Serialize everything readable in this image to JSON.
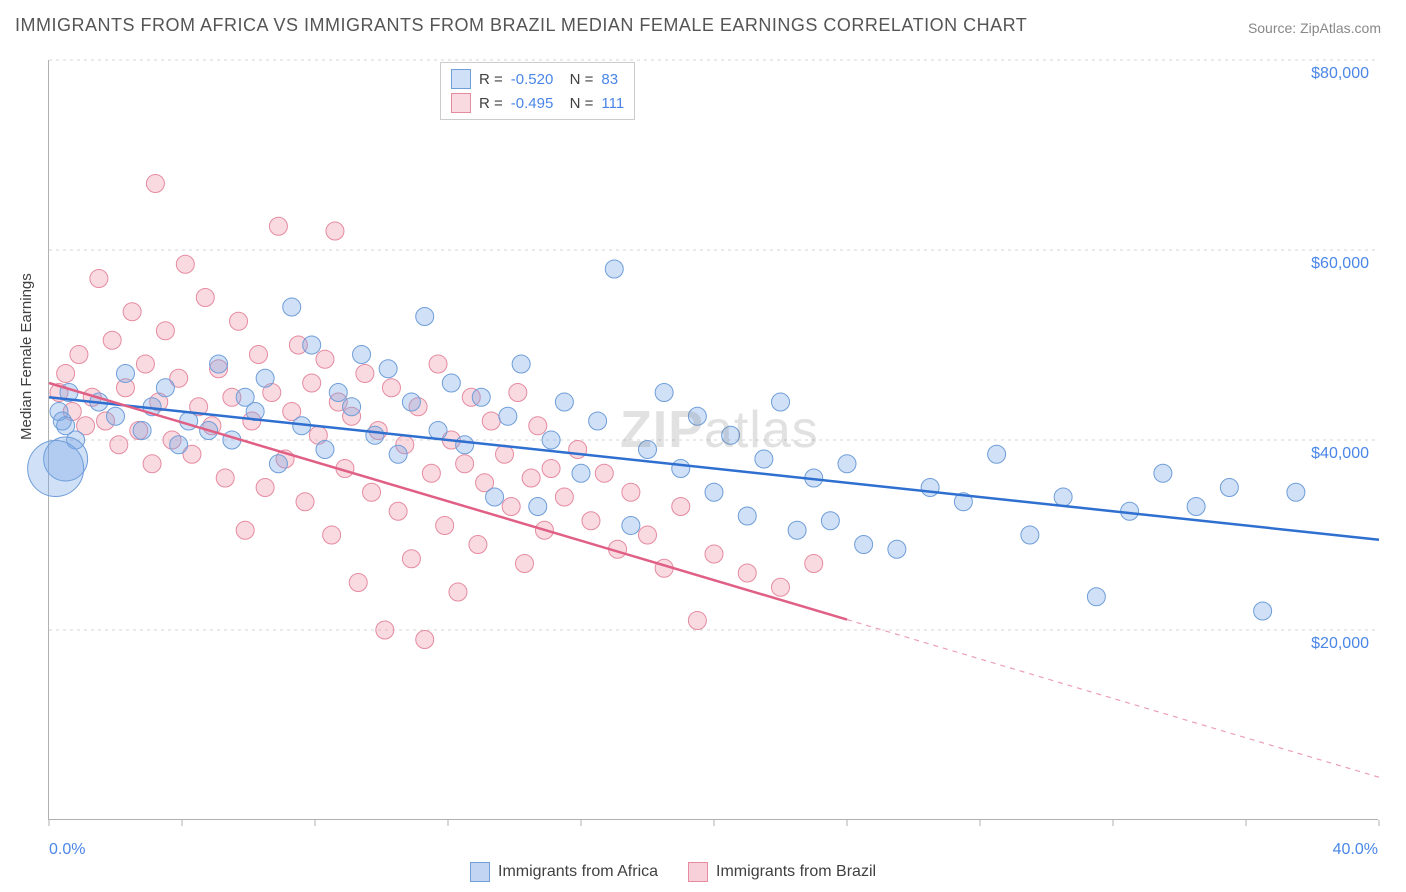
{
  "title": "IMMIGRANTS FROM AFRICA VS IMMIGRANTS FROM BRAZIL MEDIAN FEMALE EARNINGS CORRELATION CHART",
  "source": "Source: ZipAtlas.com",
  "ylabel": "Median Female Earnings",
  "watermark_zip": "ZIP",
  "watermark_atlas": "atlas",
  "chart": {
    "type": "scatter-with-regression",
    "xlim": [
      0,
      40
    ],
    "ylim": [
      0,
      80000
    ],
    "x_tick_label_min": "0.0%",
    "x_tick_label_max": "40.0%",
    "x_ticks": [
      0,
      4,
      8,
      12,
      16,
      20,
      24,
      28,
      32,
      36,
      40
    ],
    "y_ticks": [
      20000,
      40000,
      60000,
      80000
    ],
    "y_tick_labels": [
      "$20,000",
      "$40,000",
      "$60,000",
      "$80,000"
    ],
    "grid_color": "#d5d5d5",
    "axis_color": "#b0b0b0",
    "tick_label_color": "#4a86e8",
    "background_color": "#ffffff",
    "marker_radius": 9,
    "marker_opacity": 0.35,
    "line_width": 2.5,
    "series": [
      {
        "name": "Immigrants from Africa",
        "color_fill": "rgba(120,165,230,0.35)",
        "color_stroke": "#6f9ed9",
        "line_color": "#2e6fd0",
        "R": "-0.520",
        "N": "83",
        "regression": {
          "y_at_x0": 44500,
          "y_at_x40": 29500,
          "dashed_from_x": null
        },
        "points": [
          [
            0.3,
            43000
          ],
          [
            0.4,
            42000
          ],
          [
            0.5,
            41500
          ],
          [
            0.6,
            45000
          ],
          [
            0.8,
            40000
          ],
          [
            0.5,
            38000,
            22
          ],
          [
            0.2,
            37000,
            28
          ],
          [
            1.5,
            44000
          ],
          [
            2.0,
            42500
          ],
          [
            2.3,
            47000
          ],
          [
            2.8,
            41000
          ],
          [
            3.1,
            43500
          ],
          [
            3.5,
            45500
          ],
          [
            3.9,
            39500
          ],
          [
            4.2,
            42000
          ],
          [
            4.8,
            41000
          ],
          [
            5.1,
            48000
          ],
          [
            5.5,
            40000
          ],
          [
            5.9,
            44500
          ],
          [
            6.2,
            43000
          ],
          [
            6.5,
            46500
          ],
          [
            6.9,
            37500
          ],
          [
            7.3,
            54000
          ],
          [
            7.6,
            41500
          ],
          [
            7.9,
            50000
          ],
          [
            8.3,
            39000
          ],
          [
            8.7,
            45000
          ],
          [
            9.1,
            43500
          ],
          [
            9.4,
            49000
          ],
          [
            9.8,
            40500
          ],
          [
            10.2,
            47500
          ],
          [
            10.5,
            38500
          ],
          [
            10.9,
            44000
          ],
          [
            11.3,
            53000
          ],
          [
            11.7,
            41000
          ],
          [
            12.1,
            46000
          ],
          [
            12.5,
            39500
          ],
          [
            13.0,
            44500
          ],
          [
            13.4,
            34000
          ],
          [
            13.8,
            42500
          ],
          [
            14.2,
            48000
          ],
          [
            14.7,
            33000
          ],
          [
            15.1,
            40000
          ],
          [
            15.5,
            44000
          ],
          [
            16.0,
            36500
          ],
          [
            16.5,
            42000
          ],
          [
            17.0,
            58000
          ],
          [
            17.5,
            31000
          ],
          [
            18.0,
            39000
          ],
          [
            18.5,
            45000
          ],
          [
            19.0,
            37000
          ],
          [
            19.5,
            42500
          ],
          [
            20.0,
            34500
          ],
          [
            20.5,
            40500
          ],
          [
            21.0,
            32000
          ],
          [
            21.5,
            38000
          ],
          [
            22.0,
            44000
          ],
          [
            22.5,
            30500
          ],
          [
            23.0,
            36000
          ],
          [
            23.5,
            31500
          ],
          [
            24.0,
            37500
          ],
          [
            24.5,
            29000
          ],
          [
            25.5,
            28500
          ],
          [
            26.5,
            35000
          ],
          [
            27.5,
            33500
          ],
          [
            28.5,
            38500
          ],
          [
            29.5,
            30000
          ],
          [
            30.5,
            34000
          ],
          [
            31.5,
            23500
          ],
          [
            32.5,
            32500
          ],
          [
            33.5,
            36500
          ],
          [
            34.5,
            33000
          ],
          [
            35.5,
            35000
          ],
          [
            36.5,
            22000
          ],
          [
            37.5,
            34500
          ]
        ]
      },
      {
        "name": "Immigrants from Brazil",
        "color_fill": "rgba(240,150,170,0.35)",
        "color_stroke": "#e58ba0",
        "line_color": "#e06085",
        "R": "-0.495",
        "N": "111",
        "regression": {
          "y_at_x0": 46000,
          "y_at_x40": 4500,
          "dashed_from_x": 24
        },
        "points": [
          [
            0.3,
            45000
          ],
          [
            0.5,
            47000
          ],
          [
            0.7,
            43000
          ],
          [
            0.9,
            49000
          ],
          [
            1.1,
            41500
          ],
          [
            1.3,
            44500
          ],
          [
            1.5,
            57000
          ],
          [
            1.7,
            42000
          ],
          [
            1.9,
            50500
          ],
          [
            2.1,
            39500
          ],
          [
            2.3,
            45500
          ],
          [
            2.5,
            53500
          ],
          [
            2.7,
            41000
          ],
          [
            2.9,
            48000
          ],
          [
            3.1,
            37500
          ],
          [
            3.2,
            67000
          ],
          [
            3.3,
            44000
          ],
          [
            3.5,
            51500
          ],
          [
            3.7,
            40000
          ],
          [
            3.9,
            46500
          ],
          [
            4.1,
            58500
          ],
          [
            4.3,
            38500
          ],
          [
            4.5,
            43500
          ],
          [
            4.7,
            55000
          ],
          [
            4.9,
            41500
          ],
          [
            5.1,
            47500
          ],
          [
            5.3,
            36000
          ],
          [
            5.5,
            44500
          ],
          [
            5.7,
            52500
          ],
          [
            5.9,
            30500
          ],
          [
            6.1,
            42000
          ],
          [
            6.3,
            49000
          ],
          [
            6.5,
            35000
          ],
          [
            6.7,
            45000
          ],
          [
            6.9,
            62500
          ],
          [
            7.1,
            38000
          ],
          [
            7.3,
            43000
          ],
          [
            7.5,
            50000
          ],
          [
            7.7,
            33500
          ],
          [
            7.9,
            46000
          ],
          [
            8.1,
            40500
          ],
          [
            8.3,
            48500
          ],
          [
            8.5,
            30000
          ],
          [
            8.6,
            62000
          ],
          [
            8.7,
            44000
          ],
          [
            8.9,
            37000
          ],
          [
            9.1,
            42500
          ],
          [
            9.3,
            25000
          ],
          [
            9.5,
            47000
          ],
          [
            9.7,
            34500
          ],
          [
            9.9,
            41000
          ],
          [
            10.1,
            20000
          ],
          [
            10.3,
            45500
          ],
          [
            10.5,
            32500
          ],
          [
            10.7,
            39500
          ],
          [
            10.9,
            27500
          ],
          [
            11.1,
            43500
          ],
          [
            11.3,
            19000
          ],
          [
            11.5,
            36500
          ],
          [
            11.7,
            48000
          ],
          [
            11.9,
            31000
          ],
          [
            12.1,
            40000
          ],
          [
            12.3,
            24000
          ],
          [
            12.5,
            37500
          ],
          [
            12.7,
            44500
          ],
          [
            12.9,
            29000
          ],
          [
            13.1,
            35500
          ],
          [
            13.3,
            42000
          ],
          [
            13.7,
            38500
          ],
          [
            13.9,
            33000
          ],
          [
            14.1,
            45000
          ],
          [
            14.3,
            27000
          ],
          [
            14.5,
            36000
          ],
          [
            14.7,
            41500
          ],
          [
            14.9,
            30500
          ],
          [
            15.1,
            37000
          ],
          [
            15.5,
            34000
          ],
          [
            15.9,
            39000
          ],
          [
            16.3,
            31500
          ],
          [
            16.7,
            36500
          ],
          [
            17.1,
            28500
          ],
          [
            17.5,
            34500
          ],
          [
            18.0,
            30000
          ],
          [
            18.5,
            26500
          ],
          [
            19.0,
            33000
          ],
          [
            19.5,
            21000
          ],
          [
            20.0,
            28000
          ],
          [
            21.0,
            26000
          ],
          [
            22.0,
            24500
          ],
          [
            23.0,
            27000
          ]
        ]
      }
    ]
  },
  "legend_bottom": [
    {
      "label": "Immigrants from Africa",
      "fill": "rgba(120,165,230,0.45)",
      "stroke": "#6f9ed9"
    },
    {
      "label": "Immigrants from Brazil",
      "fill": "rgba(240,150,170,0.45)",
      "stroke": "#e58ba0"
    }
  ]
}
